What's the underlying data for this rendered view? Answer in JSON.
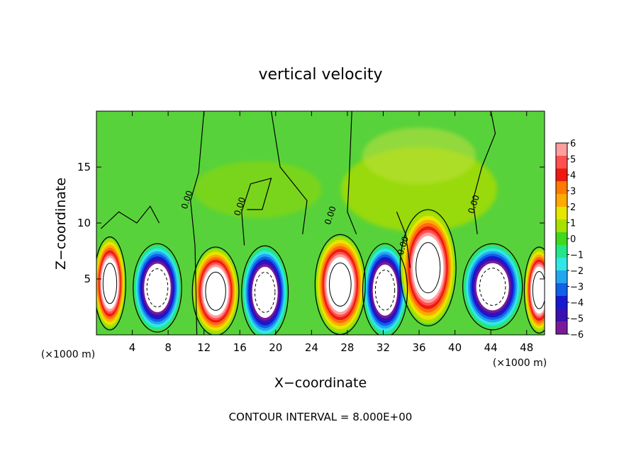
{
  "chart_data": {
    "type": "heatmap",
    "title": "vertical velocity",
    "xlabel": "X−coordinate",
    "ylabel": "Z−coordinate",
    "x_unit_left": "(×1000 m)",
    "x_unit_right": "(×1000 m)",
    "xlim": [
      0,
      50
    ],
    "ylim": [
      0,
      20
    ],
    "xticks": [
      "4",
      "8",
      "12",
      "16",
      "20",
      "24",
      "28",
      "32",
      "36",
      "40",
      "44",
      "48"
    ],
    "xtick_values": [
      4,
      8,
      12,
      16,
      20,
      24,
      28,
      32,
      36,
      40,
      44,
      48
    ],
    "yticks": [
      "5",
      "10",
      "15"
    ],
    "ytick_values": [
      5,
      10,
      15
    ],
    "colorbar": {
      "min": -6,
      "max": 6,
      "labels": [
        "6",
        "5",
        "4",
        "3",
        "2",
        "1",
        "0",
        "−1",
        "−2",
        "−3",
        "−4",
        "−5",
        "−6"
      ],
      "label_values": [
        6,
        5,
        4,
        3,
        2,
        1,
        0,
        -1,
        -2,
        -3,
        -4,
        -5,
        -6
      ],
      "colors": [
        "#ff9e9e",
        "#ff5050",
        "#ee1a10",
        "#ff7a00",
        "#ffaa00",
        "#e6e600",
        "#a8e000",
        "#40d820",
        "#22e688",
        "#33e6e6",
        "#22a6f0",
        "#1060e8",
        "#1818d0",
        "#3a10b0",
        "#7a1a9a"
      ]
    },
    "cells": [
      {
        "xc": 1.5,
        "zc": 4.6,
        "w": 3.4,
        "h": 8.0,
        "sign": 1,
        "peak": 8
      },
      {
        "xc": 6.8,
        "zc": 4.2,
        "w": 5.2,
        "h": 7.6,
        "sign": -1,
        "peak": -8
      },
      {
        "xc": 13.3,
        "zc": 3.9,
        "w": 5.0,
        "h": 7.6,
        "sign": 1,
        "peak": 8
      },
      {
        "xc": 18.8,
        "zc": 3.8,
        "w": 5.0,
        "h": 8.0,
        "sign": -1,
        "peak": -8
      },
      {
        "xc": 27.2,
        "zc": 4.5,
        "w": 5.4,
        "h": 8.6,
        "sign": 1,
        "peak": 8
      },
      {
        "xc": 32.2,
        "zc": 4.0,
        "w": 4.8,
        "h": 8.0,
        "sign": -1,
        "peak": -8
      },
      {
        "xc": 37.0,
        "zc": 6.0,
        "w": 6.0,
        "h": 10.0,
        "sign": 1,
        "peak": 8
      },
      {
        "xc": 44.2,
        "zc": 4.3,
        "w": 6.4,
        "h": 7.4,
        "sign": -1,
        "peak": -8
      },
      {
        "xc": 49.4,
        "zc": 4.0,
        "w": 3.2,
        "h": 7.4,
        "sign": 1,
        "peak": 8
      }
    ],
    "contour_labels": [
      {
        "text": "0.00",
        "x": 10.4,
        "z": 12.0
      },
      {
        "text": "0.00",
        "x": 16.3,
        "z": 11.4
      },
      {
        "text": "0.00",
        "x": 26.4,
        "z": 10.6
      },
      {
        "text": "0.00",
        "x": 34.5,
        "z": 7.9
      },
      {
        "text": "0.00",
        "x": 42.4,
        "z": 11.6
      }
    ],
    "footer": "CONTOUR INTERVAL = 8.000E+00"
  }
}
